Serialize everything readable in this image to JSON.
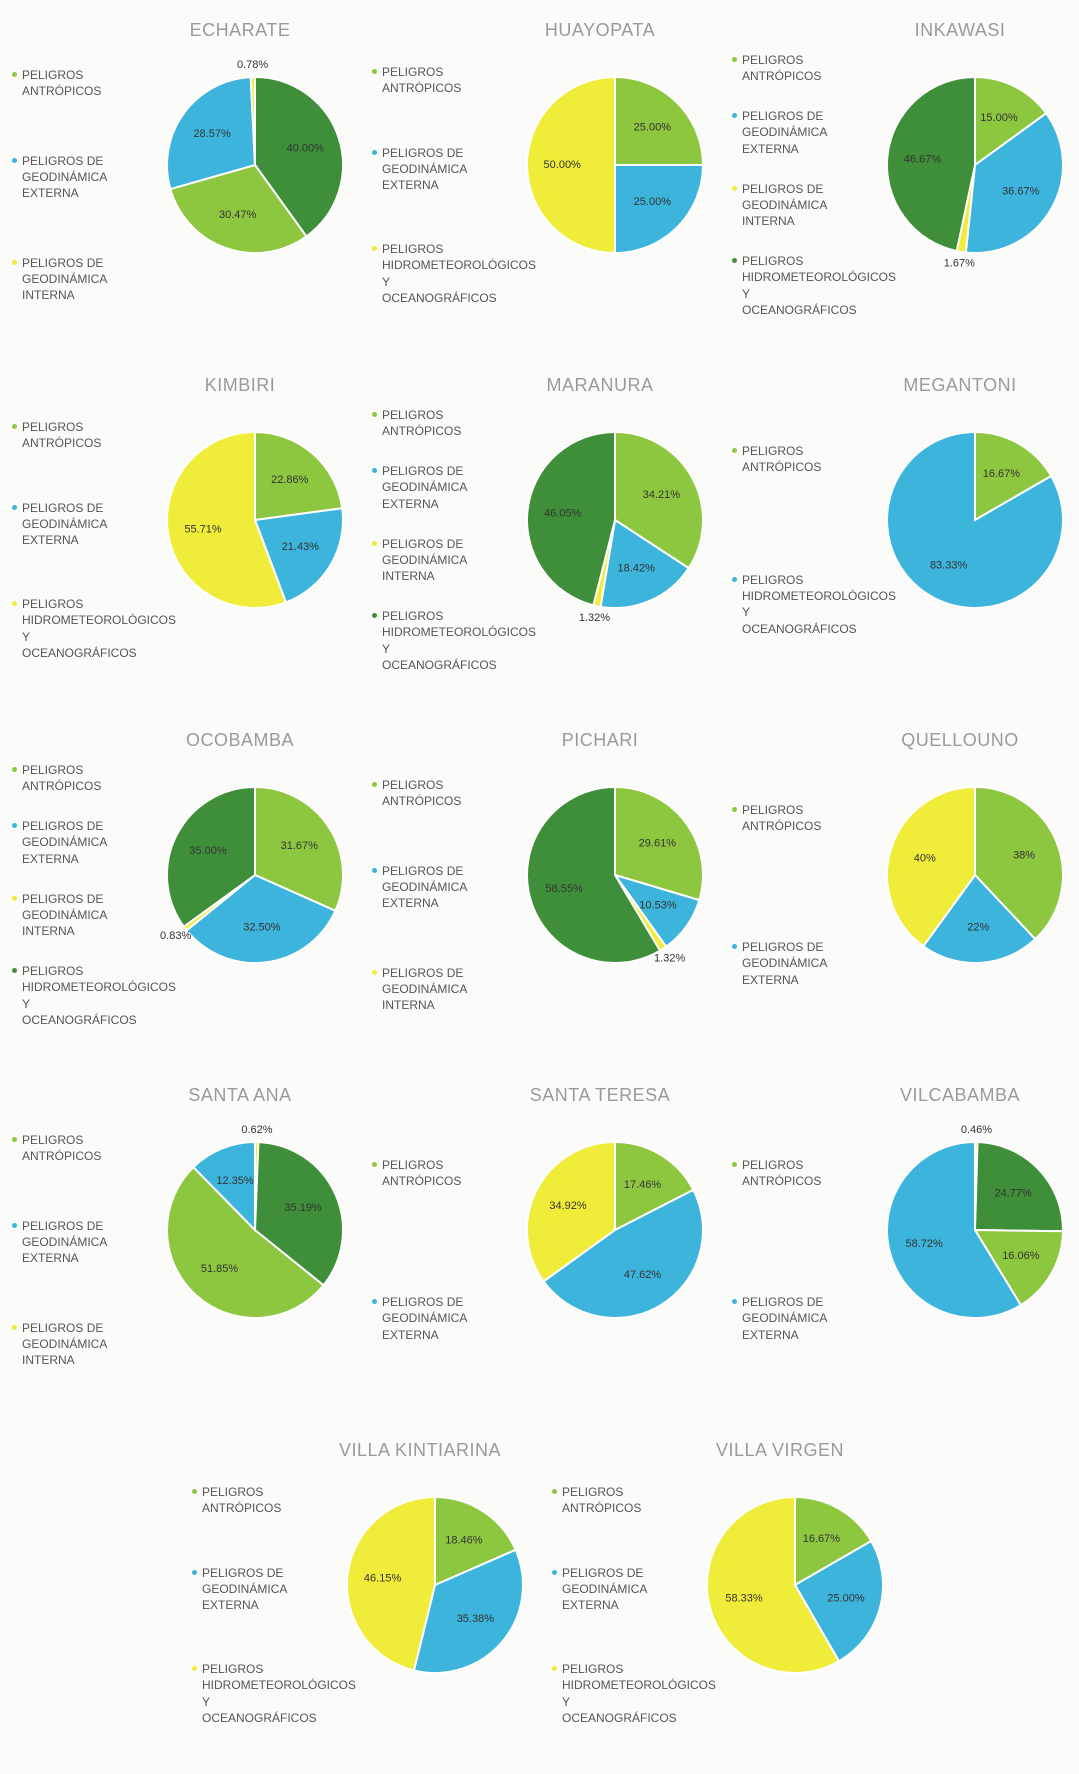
{
  "chart_data": [
    {
      "type": "pie",
      "title": "ECHARATE",
      "legend": [
        {
          "name": "PELIGROS ANTRÓPICOS",
          "color": "#8dc63f"
        },
        {
          "name": "PELIGROS DE GEODINÁMICA EXTERNA",
          "color": "#3cb4dc"
        },
        {
          "name": "PELIGROS DE GEODINÁMICA INTERNA",
          "color": "#f0ec3a"
        }
      ],
      "values": [
        40.0,
        30.47,
        28.57,
        0.78
      ],
      "value_labels": [
        "40.00%",
        "30.47%",
        "28.57%",
        "0.78%"
      ],
      "colors": [
        "#3f8f3a",
        "#8dc63f",
        "#3cb4dc",
        "#f0ec3a"
      ]
    },
    {
      "type": "pie",
      "title": "HUAYOPATA",
      "legend": [
        {
          "name": "PELIGROS ANTRÓPICOS",
          "color": "#8dc63f"
        },
        {
          "name": "PELIGROS DE GEODINÁMICA EXTERNA",
          "color": "#3cb4dc"
        },
        {
          "name": "PELIGROS HIDROMETEOROLÓGICOS Y OCEANOGRÁFICOS",
          "color": "#f0ec3a"
        }
      ],
      "values": [
        25.0,
        25.0,
        50.0
      ],
      "value_labels": [
        "25.00%",
        "25.00%",
        "50.00%"
      ],
      "colors": [
        "#8dc63f",
        "#3cb4dc",
        "#f0ec3a"
      ]
    },
    {
      "type": "pie",
      "title": "INKAWASI",
      "legend": [
        {
          "name": "PELIGROS ANTRÓPICOS",
          "color": "#8dc63f"
        },
        {
          "name": "PELIGROS DE GEODINÁMICA EXTERNA",
          "color": "#3cb4dc"
        },
        {
          "name": "PELIGROS DE GEODINÁMICA INTERNA",
          "color": "#f0ec3a"
        },
        {
          "name": "PELIGROS HIDROMETEOROLÓGICOS Y OCEANOGRÁFICOS",
          "color": "#3f8f3a"
        }
      ],
      "values": [
        15.0,
        36.67,
        1.67,
        46.67
      ],
      "value_labels": [
        "15.00%",
        "36.67%",
        "1.67%",
        "46.67%"
      ],
      "colors": [
        "#8dc63f",
        "#3cb4dc",
        "#f0ec3a",
        "#3f8f3a"
      ]
    },
    {
      "type": "pie",
      "title": "KIMBIRI",
      "legend": [
        {
          "name": "PELIGROS ANTRÓPICOS",
          "color": "#8dc63f"
        },
        {
          "name": "PELIGROS DE GEODINÁMICA EXTERNA",
          "color": "#3cb4dc"
        },
        {
          "name": "PELIGROS HIDROMETEOROLÓGICOS Y OCEANOGRÁFICOS",
          "color": "#f0ec3a"
        }
      ],
      "values": [
        22.86,
        21.43,
        55.71
      ],
      "value_labels": [
        "22.86%",
        "21.43%",
        "55.71%"
      ],
      "colors": [
        "#8dc63f",
        "#3cb4dc",
        "#f0ec3a"
      ]
    },
    {
      "type": "pie",
      "title": "MARANURA",
      "legend": [
        {
          "name": "PELIGROS ANTRÓPICOS",
          "color": "#8dc63f"
        },
        {
          "name": "PELIGROS DE GEODINÁMICA EXTERNA",
          "color": "#3cb4dc"
        },
        {
          "name": "PELIGROS DE GEODINÁMICA INTERNA",
          "color": "#f0ec3a"
        },
        {
          "name": "PELIGROS HIDROMETEOROLÓGICOS Y OCEANOGRÁFICOS",
          "color": "#3f8f3a"
        }
      ],
      "values": [
        34.21,
        18.42,
        1.32,
        46.05
      ],
      "value_labels": [
        "34.21%",
        "18.42%",
        "1.32%",
        "46.05%"
      ],
      "colors": [
        "#8dc63f",
        "#3cb4dc",
        "#f0ec3a",
        "#3f8f3a"
      ]
    },
    {
      "type": "pie",
      "title": "MEGANTONI",
      "legend": [
        {
          "name": "PELIGROS ANTRÓPICOS",
          "color": "#8dc63f"
        },
        {
          "name": "PELIGROS HIDROMETEOROLÓGICOS Y OCEANOGRÁFICOS",
          "color": "#3cb4dc"
        }
      ],
      "values": [
        16.67,
        83.33
      ],
      "value_labels": [
        "16.67%",
        "83.33%"
      ],
      "colors": [
        "#8dc63f",
        "#3cb4dc"
      ]
    },
    {
      "type": "pie",
      "title": "OCOBAMBA",
      "legend": [
        {
          "name": "PELIGROS ANTRÓPICOS",
          "color": "#8dc63f"
        },
        {
          "name": "PELIGROS DE GEODINÁMICA EXTERNA",
          "color": "#3cb4dc"
        },
        {
          "name": "PELIGROS DE GEODINÁMICA INTERNA",
          "color": "#f0ec3a"
        },
        {
          "name": "PELIGROS HIDROMETEOROLÓGICOS Y OCEANOGRÁFICOS",
          "color": "#3f8f3a"
        }
      ],
      "values": [
        31.67,
        32.5,
        0.83,
        35.0
      ],
      "value_labels": [
        "31.67%",
        "32.50%",
        "0.83%",
        "35.00%"
      ],
      "colors": [
        "#8dc63f",
        "#3cb4dc",
        "#f0ec3a",
        "#3f8f3a"
      ]
    },
    {
      "type": "pie",
      "title": "PICHARI",
      "legend": [
        {
          "name": "PELIGROS ANTRÓPICOS",
          "color": "#8dc63f"
        },
        {
          "name": "PELIGROS DE GEODINÁMICA EXTERNA",
          "color": "#3cb4dc"
        },
        {
          "name": "PELIGROS DE GEODINÁMICA INTERNA",
          "color": "#f0ec3a"
        }
      ],
      "values": [
        29.61,
        10.53,
        1.32,
        58.55
      ],
      "value_labels": [
        "29.61%",
        "10.53%",
        "1.32%",
        "58.55%"
      ],
      "colors": [
        "#8dc63f",
        "#3cb4dc",
        "#f0ec3a",
        "#3f8f3a"
      ]
    },
    {
      "type": "pie",
      "title": "QUELLOUNO",
      "legend": [
        {
          "name": "PELIGROS ANTRÓPICOS",
          "color": "#8dc63f"
        },
        {
          "name": "PELIGROS DE GEODINÁMICA EXTERNA",
          "color": "#3cb4dc"
        }
      ],
      "values": [
        38,
        22,
        40
      ],
      "value_labels": [
        "38%",
        "22%",
        "40%"
      ],
      "colors": [
        "#8dc63f",
        "#3cb4dc",
        "#f0ec3a"
      ]
    },
    {
      "type": "pie",
      "title": "SANTA ANA",
      "legend": [
        {
          "name": "PELIGROS ANTRÓPICOS",
          "color": "#8dc63f"
        },
        {
          "name": "PELIGROS DE GEODINÁMICA EXTERNA",
          "color": "#3cb4dc"
        },
        {
          "name": "PELIGROS DE GEODINÁMICA INTERNA",
          "color": "#f0ec3a"
        }
      ],
      "values": [
        0.62,
        35.19,
        51.85,
        12.35
      ],
      "value_labels": [
        "0.62%",
        "35.19%",
        "51.85%",
        "12.35%"
      ],
      "colors": [
        "#f0ec3a",
        "#3f8f3a",
        "#8dc63f",
        "#3cb4dc"
      ]
    },
    {
      "type": "pie",
      "title": "SANTA TERESA",
      "legend": [
        {
          "name": "PELIGROS ANTRÓPICOS",
          "color": "#8dc63f"
        },
        {
          "name": "PELIGROS DE GEODINÁMICA EXTERNA",
          "color": "#3cb4dc"
        }
      ],
      "values": [
        17.46,
        47.62,
        34.92
      ],
      "value_labels": [
        "17.46%",
        "47.62%",
        "34.92%"
      ],
      "colors": [
        "#8dc63f",
        "#3cb4dc",
        "#f0ec3a"
      ]
    },
    {
      "type": "pie",
      "title": "VILCABAMBA",
      "legend": [
        {
          "name": "PELIGROS ANTRÓPICOS",
          "color": "#8dc63f"
        },
        {
          "name": "PELIGROS DE GEODINÁMICA EXTERNA",
          "color": "#3cb4dc"
        }
      ],
      "values": [
        0.46,
        24.77,
        16.06,
        58.72
      ],
      "value_labels": [
        "0.46%",
        "24.77%",
        "16.06%",
        "58.72%"
      ],
      "colors": [
        "#f0ec3a",
        "#3f8f3a",
        "#8dc63f",
        "#3cb4dc"
      ]
    },
    {
      "type": "pie",
      "title": "VILLA KINTIARINA",
      "legend": [
        {
          "name": "PELIGROS ANTRÓPICOS",
          "color": "#8dc63f"
        },
        {
          "name": "PELIGROS DE GEODINÁMICA EXTERNA",
          "color": "#3cb4dc"
        },
        {
          "name": "PELIGROS HIDROMETEOROLÓGICOS Y OCEANOGRÁFICOS",
          "color": "#f0ec3a"
        }
      ],
      "values": [
        18.46,
        35.38,
        46.15
      ],
      "value_labels": [
        "18.46%",
        "35.38%",
        "46.15%"
      ],
      "colors": [
        "#8dc63f",
        "#3cb4dc",
        "#f0ec3a"
      ]
    },
    {
      "type": "pie",
      "title": "VILLA VIRGEN",
      "legend": [
        {
          "name": "PELIGROS ANTRÓPICOS",
          "color": "#8dc63f"
        },
        {
          "name": "PELIGROS DE GEODINÁMICA EXTERNA",
          "color": "#3cb4dc"
        },
        {
          "name": "PELIGROS HIDROMETEOROLÓGICOS Y OCEANOGRÁFICOS",
          "color": "#f0ec3a"
        }
      ],
      "values": [
        16.67,
        25.0,
        58.33
      ],
      "value_labels": [
        "16.67%",
        "25.00%",
        "58.33%"
      ],
      "colors": [
        "#8dc63f",
        "#3cb4dc",
        "#f0ec3a"
      ]
    }
  ]
}
